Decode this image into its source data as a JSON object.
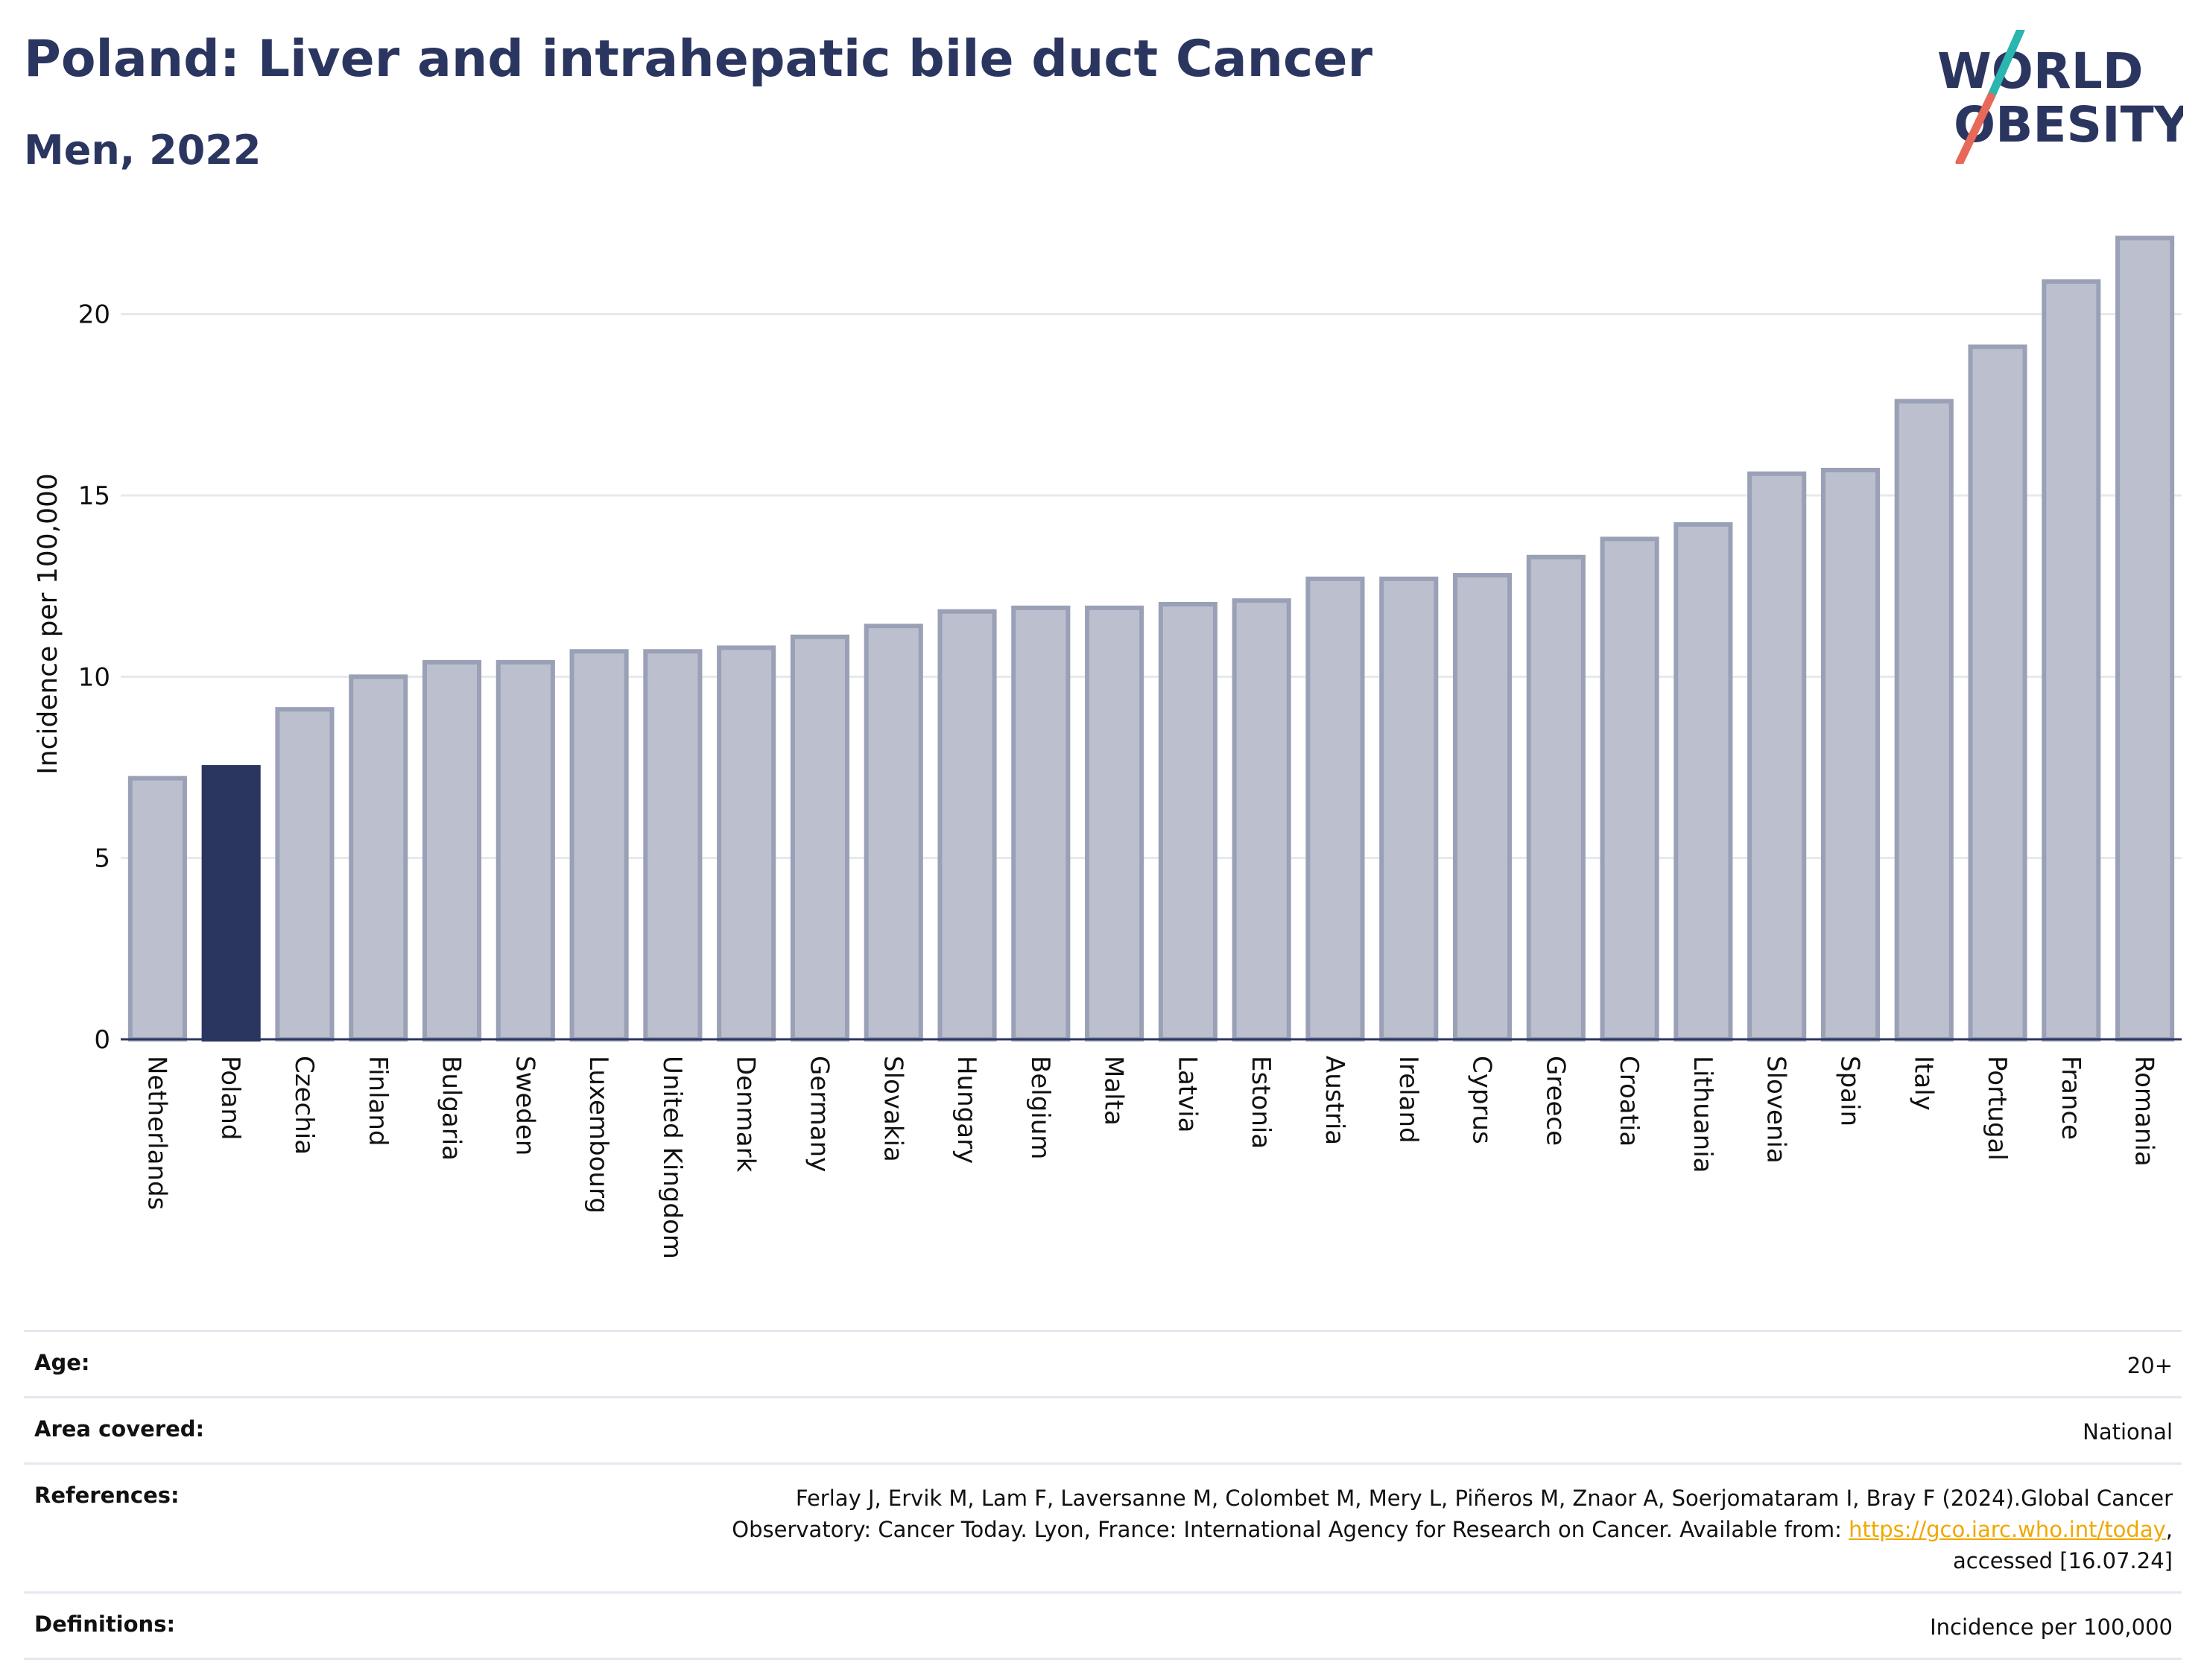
{
  "header": {
    "title": "Poland: Liver and intrahepatic bile duct Cancer",
    "subtitle": "Men, 2022",
    "logo_line1": "WORLD",
    "logo_line2": "OBESITY"
  },
  "colors": {
    "highlight": "#2b3660",
    "bar_fill": "#bcc0ce",
    "bar_stroke": "#9aa0b6",
    "title": "#2b3660",
    "link": "#f0a800",
    "logo_slash_top": "#2ab5b0",
    "logo_slash_bottom": "#e8685a"
  },
  "chart_data": {
    "type": "bar",
    "title": "Poland: Liver and intrahepatic bile duct Cancer",
    "subtitle": "Men, 2022",
    "xlabel": "",
    "ylabel": "Incidence per 100,000",
    "ylim": [
      0,
      22.5
    ],
    "yticks": [
      0,
      5,
      10,
      15,
      20
    ],
    "grid": true,
    "highlight": "Poland",
    "categories": [
      "Netherlands",
      "Poland",
      "Czechia",
      "Finland",
      "Bulgaria",
      "Sweden",
      "Luxembourg",
      "United Kingdom",
      "Denmark",
      "Germany",
      "Slovakia",
      "Hungary",
      "Belgium",
      "Malta",
      "Latvia",
      "Estonia",
      "Austria",
      "Ireland",
      "Cyprus",
      "Greece",
      "Croatia",
      "Lithuania",
      "Slovenia",
      "Spain",
      "Italy",
      "Portugal",
      "France",
      "Romania"
    ],
    "values": [
      7.2,
      7.5,
      9.1,
      10.0,
      10.4,
      10.4,
      10.7,
      10.7,
      10.8,
      11.1,
      11.4,
      11.8,
      11.9,
      11.9,
      12.0,
      12.1,
      12.7,
      12.7,
      12.8,
      13.3,
      13.8,
      14.2,
      15.6,
      15.7,
      17.6,
      19.1,
      20.9,
      22.1
    ]
  },
  "meta": {
    "age_label": "Age:",
    "age_value": "20+",
    "area_label": "Area covered:",
    "area_value": "National",
    "references_label": "References:",
    "references_line1": "Ferlay J, Ervik M, Lam F, Laversanne M, Colombet M, Mery L, Piñeros M, Znaor A, Soerjomataram I, Bray F (2024).Global Cancer",
    "references_line2_prefix": "Observatory: Cancer Today. Lyon, France: International Agency for Research on Cancer. Available from: ",
    "references_link": "https://gco.iarc.who.int/today",
    "references_line2_suffix": ",",
    "references_line3": "accessed [16.07.24]",
    "definitions_label": "Definitions:",
    "definitions_value": "Incidence per 100,000"
  }
}
